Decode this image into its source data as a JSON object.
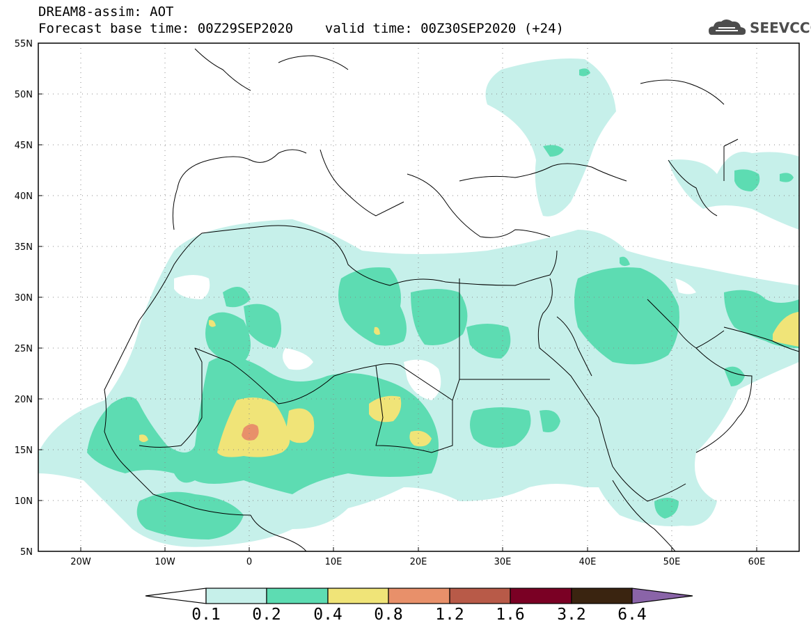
{
  "header": {
    "title_line1": "DREAM8-assim: AOT",
    "title_line2": "Forecast base time: 00Z29SEP2020    valid time: 00Z30SEP2020 (+24)",
    "logo_text": "SEEVCCC"
  },
  "map": {
    "lon_range": [
      -25,
      65
    ],
    "lat_range": [
      5,
      55
    ],
    "lon_ticks": [
      "20W",
      "10W",
      "0",
      "10E",
      "20E",
      "30E",
      "40E",
      "50E",
      "60E"
    ],
    "lon_tick_values": [
      -20,
      -10,
      0,
      10,
      20,
      30,
      40,
      50,
      60
    ],
    "lat_ticks": [
      "55N",
      "50N",
      "45N",
      "40N",
      "35N",
      "30N",
      "25N",
      "20N",
      "15N",
      "10N",
      "5N"
    ],
    "lat_tick_values": [
      55,
      50,
      45,
      40,
      35,
      30,
      25,
      20,
      15,
      10,
      5
    ],
    "grid": "dotted"
  },
  "legend": {
    "levels": [
      "0.1",
      "0.2",
      "0.4",
      "0.8",
      "1.2",
      "1.6",
      "3.2",
      "6.4"
    ],
    "colors": [
      "#c6f0ea",
      "#5ddcb2",
      "#f0e478",
      "#e8906a",
      "#b85a48",
      "#7a0024",
      "#3a2410",
      "#8a64a8"
    ]
  },
  "colors": {
    "aot_01": "#c6f0ea",
    "aot_02": "#5ddcb2",
    "aot_04": "#f0e478",
    "aot_08": "#e8906a",
    "coast": "#000000"
  }
}
